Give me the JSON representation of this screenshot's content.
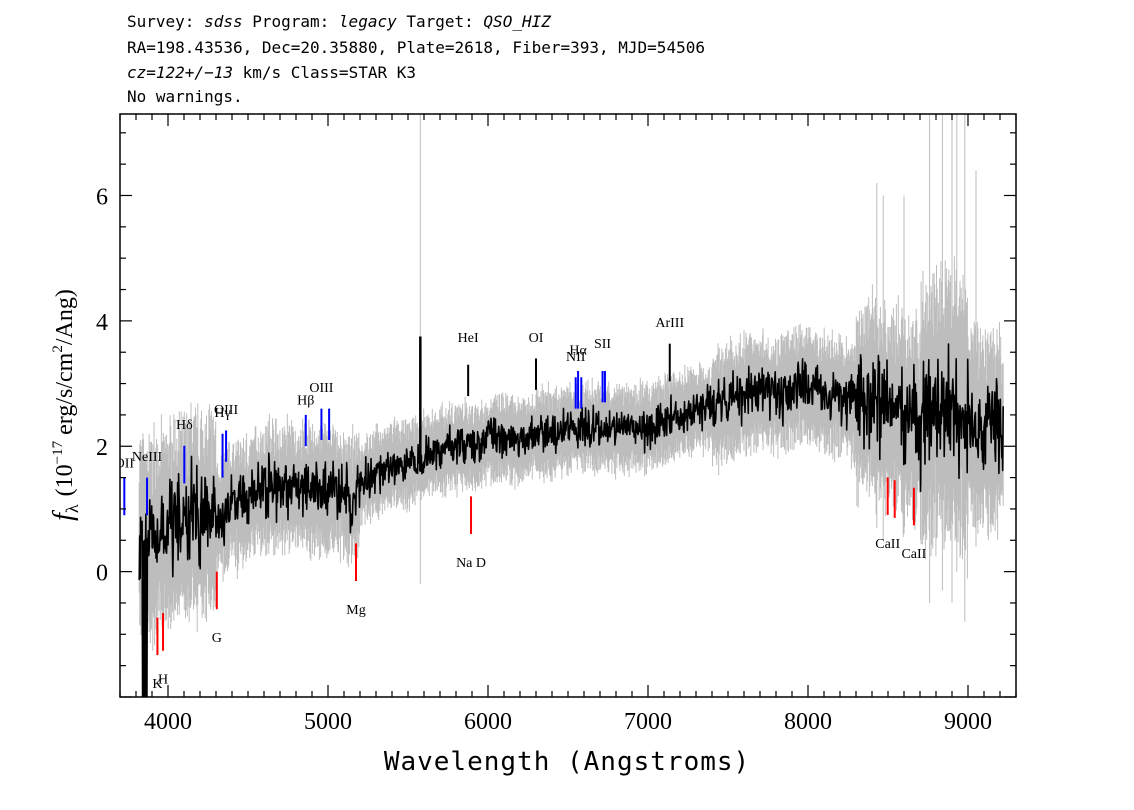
{
  "header": {
    "line1": {
      "survey_label": "Survey: ",
      "survey": "sdss",
      "program_label": " Program: ",
      "program": "legacy",
      "target_label": " Target: ",
      "target": "QSO_HIZ"
    },
    "line2": "RA=198.43536, Dec=20.35880, Plate=2618, Fiber=393, MJD=54506",
    "line3": {
      "cz": "cz=122+/−13",
      "units": " km/s Class=STAR K3"
    },
    "line4": "No warnings."
  },
  "chart_data": {
    "type": "line",
    "xlabel": "Wavelength (Angstroms)",
    "ylabel": "fλ (10⁻¹⁷ erg/s/cm²/Ang)",
    "ylabel_parts": {
      "f": "f",
      "lambda": "λ",
      "a": "(10",
      "exp1": "−17",
      "b": " erg/s/cm",
      "exp2": "2",
      "c": "/Ang)"
    },
    "xlim": [
      3700,
      9300
    ],
    "ylim": [
      -2,
      7.3
    ],
    "xticks": [
      "4000",
      "5000",
      "6000",
      "7000",
      "8000",
      "9000"
    ],
    "yticks": [
      "0",
      "2",
      "4",
      "6"
    ],
    "xtick_values": [
      4000,
      5000,
      6000,
      7000,
      8000,
      9000
    ],
    "ytick_values": [
      0,
      2,
      4,
      6
    ],
    "colors": {
      "flux": "#000000",
      "error": "#bdbdbd",
      "emission": "#0000ff",
      "absorption": "#ff0000",
      "other": "#000000"
    },
    "series": [
      {
        "name": "flux",
        "x": [
          3800,
          3850,
          3900,
          3950,
          4000,
          4050,
          4100,
          4150,
          4200,
          4250,
          4300,
          4350,
          4400,
          4450,
          4500,
          4550,
          4600,
          4650,
          4700,
          4750,
          4800,
          4850,
          4900,
          4950,
          5000,
          5050,
          5100,
          5150,
          5200,
          5250,
          5300,
          5350,
          5400,
          5450,
          5500,
          5550,
          5600,
          5650,
          5700,
          5750,
          5800,
          5850,
          5900,
          5950,
          6000,
          6100,
          6200,
          6300,
          6400,
          6500,
          6600,
          6700,
          6800,
          6900,
          7000,
          7100,
          7200,
          7300,
          7400,
          7500,
          7600,
          7700,
          7800,
          7900,
          8000,
          8100,
          8200,
          8300,
          8400,
          8500,
          8600,
          8700,
          8800,
          8900,
          9000,
          9100,
          9200
        ],
        "y": [
          0.6,
          0.5,
          0.5,
          0.6,
          0.7,
          0.8,
          0.8,
          1.0,
          0.9,
          0.9,
          0.9,
          0.9,
          1.1,
          1.1,
          1.1,
          1.3,
          1.3,
          1.4,
          1.3,
          1.4,
          1.3,
          1.3,
          1.3,
          1.3,
          1.3,
          1.3,
          1.2,
          1.1,
          1.4,
          1.5,
          1.6,
          1.6,
          1.7,
          1.7,
          1.7,
          1.8,
          1.8,
          1.9,
          1.9,
          2.0,
          2.0,
          2.0,
          2.0,
          2.0,
          2.1,
          2.1,
          2.1,
          2.2,
          2.2,
          2.3,
          2.3,
          2.3,
          2.3,
          2.3,
          2.3,
          2.4,
          2.5,
          2.6,
          2.6,
          2.7,
          2.8,
          2.9,
          2.8,
          2.9,
          3.0,
          2.8,
          2.8,
          2.7,
          2.8,
          2.6,
          2.5,
          2.4,
          2.6,
          2.6,
          2.4,
          2.3,
          2.3
        ]
      }
    ],
    "lines": [
      {
        "label": "OII",
        "x": 3727,
        "kind": "emission"
      },
      {
        "label": "NeIII",
        "x": 3869,
        "kind": "emission"
      },
      {
        "label": "Hδ",
        "x": 4102,
        "kind": "emission"
      },
      {
        "label": "Hγ",
        "x": 4341,
        "kind": "emission"
      },
      {
        "label": "OIII",
        "x": 4363,
        "kind": "emission"
      },
      {
        "label": "Hβ",
        "x": 4861,
        "kind": "emission"
      },
      {
        "label": "OIII",
        "x": 4959,
        "kind": "emission"
      },
      {
        "label": "OIII",
        "x": 5007,
        "kind": "emission"
      },
      {
        "label": "HeI",
        "x": 5876,
        "kind": "other"
      },
      {
        "label": "OI",
        "x": 6300,
        "kind": "other"
      },
      {
        "label": "NII",
        "x": 6548,
        "kind": "emission"
      },
      {
        "label": "Hα",
        "x": 6563,
        "kind": "emission"
      },
      {
        "label": "NII",
        "x": 6583,
        "kind": "emission"
      },
      {
        "label": "SII",
        "x": 6716,
        "kind": "emission"
      },
      {
        "label": "SII",
        "x": 6731,
        "kind": "emission"
      },
      {
        "label": "ArIII",
        "x": 7136,
        "kind": "other"
      },
      {
        "label": "K",
        "x": 3934,
        "kind": "absorption"
      },
      {
        "label": "H",
        "x": 3969,
        "kind": "absorption"
      },
      {
        "label": "G",
        "x": 4305,
        "kind": "absorption"
      },
      {
        "label": "Mg",
        "x": 5175,
        "kind": "absorption"
      },
      {
        "label": "Na D",
        "x": 5894,
        "kind": "absorption"
      },
      {
        "label": "CaII",
        "x": 8498,
        "kind": "absorption"
      },
      {
        "label": "CaII",
        "x": 8542,
        "kind": "absorption"
      },
      {
        "label": "CaII",
        "x": 8662,
        "kind": "absorption"
      }
    ]
  }
}
